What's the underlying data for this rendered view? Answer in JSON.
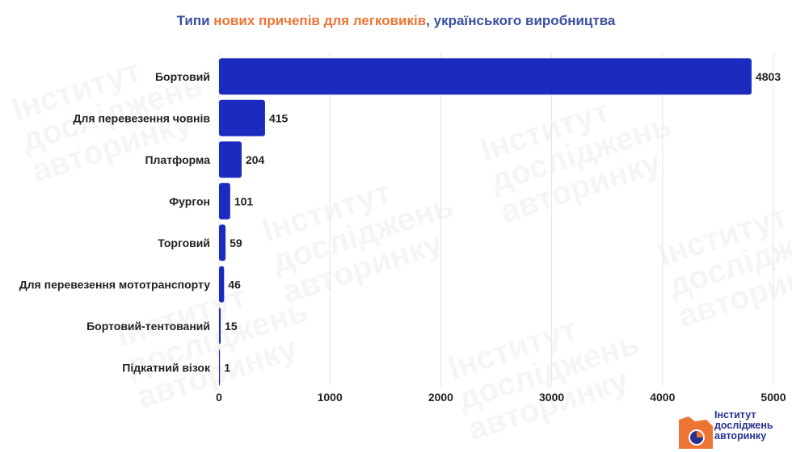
{
  "chart_title": {
    "part1": "Типи ",
    "part2": "нових причепів для легковиків",
    "part3": ", українського виробництва"
  },
  "chart_data": {
    "type": "bar",
    "orientation": "horizontal",
    "categories": [
      "Бортовий",
      "Для перевезення човнів",
      "Платформа",
      "Фургон",
      "Торговий",
      "Для перевезення мототранспорту",
      "Бортовий-тентований",
      "Підкатний візок"
    ],
    "values": [
      4803,
      415,
      204,
      101,
      59,
      46,
      15,
      1
    ],
    "xlim": [
      0,
      5000
    ],
    "xticks": [
      0,
      1000,
      2000,
      3000,
      4000,
      5000
    ],
    "grid": true,
    "bar_color": "#1b2bbf",
    "title_colors": {
      "main": "#3a4fa0",
      "accent": "#ee7434"
    }
  },
  "watermark": {
    "lines": [
      "Інститут",
      "досліджень",
      "авторинку"
    ]
  },
  "logo": {
    "lines": [
      "Інститут",
      "досліджень",
      "авторинку"
    ],
    "colors": {
      "orange": "#ee7434",
      "blue": "#25308f"
    }
  }
}
